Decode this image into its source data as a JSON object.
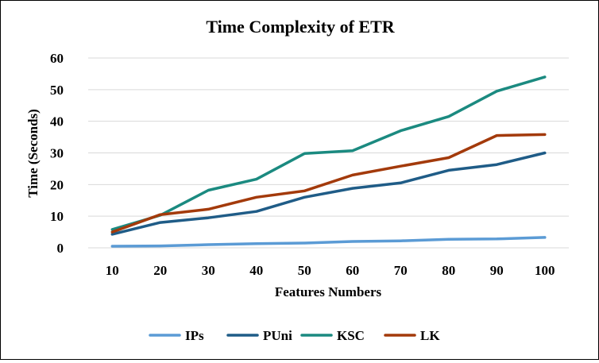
{
  "chart_data": {
    "type": "line",
    "title": "Time Complexity of ETR",
    "xlabel": "Features Numbers",
    "ylabel": "Time  (Seconds)",
    "categories": [
      "10",
      "20",
      "30",
      "40",
      "50",
      "60",
      "70",
      "80",
      "90",
      "100"
    ],
    "ylim": [
      0,
      60
    ],
    "yticks": [
      "0",
      "10",
      "20",
      "30",
      "40",
      "50",
      "60"
    ],
    "grid": "horizontal",
    "legend_position": "bottom",
    "series": [
      {
        "name": "IPs",
        "color": "#5B9BD5",
        "values": [
          0.5,
          0.6,
          1.0,
          1.3,
          1.5,
          2.0,
          2.2,
          2.7,
          2.8,
          3.3
        ]
      },
      {
        "name": "PUni",
        "color": "#1F5C87",
        "values": [
          4.3,
          8.0,
          9.5,
          11.5,
          16.0,
          18.8,
          20.5,
          24.5,
          26.3,
          30.0
        ]
      },
      {
        "name": "KSC",
        "color": "#1B8A80",
        "values": [
          5.8,
          10.3,
          18.2,
          21.7,
          29.8,
          30.7,
          37.0,
          41.5,
          49.5,
          54.0
        ]
      },
      {
        "name": "LK",
        "color": "#A33A0B",
        "values": [
          5.0,
          10.5,
          12.2,
          16.0,
          18.0,
          23.0,
          25.8,
          28.5,
          35.5,
          35.8
        ]
      }
    ]
  }
}
